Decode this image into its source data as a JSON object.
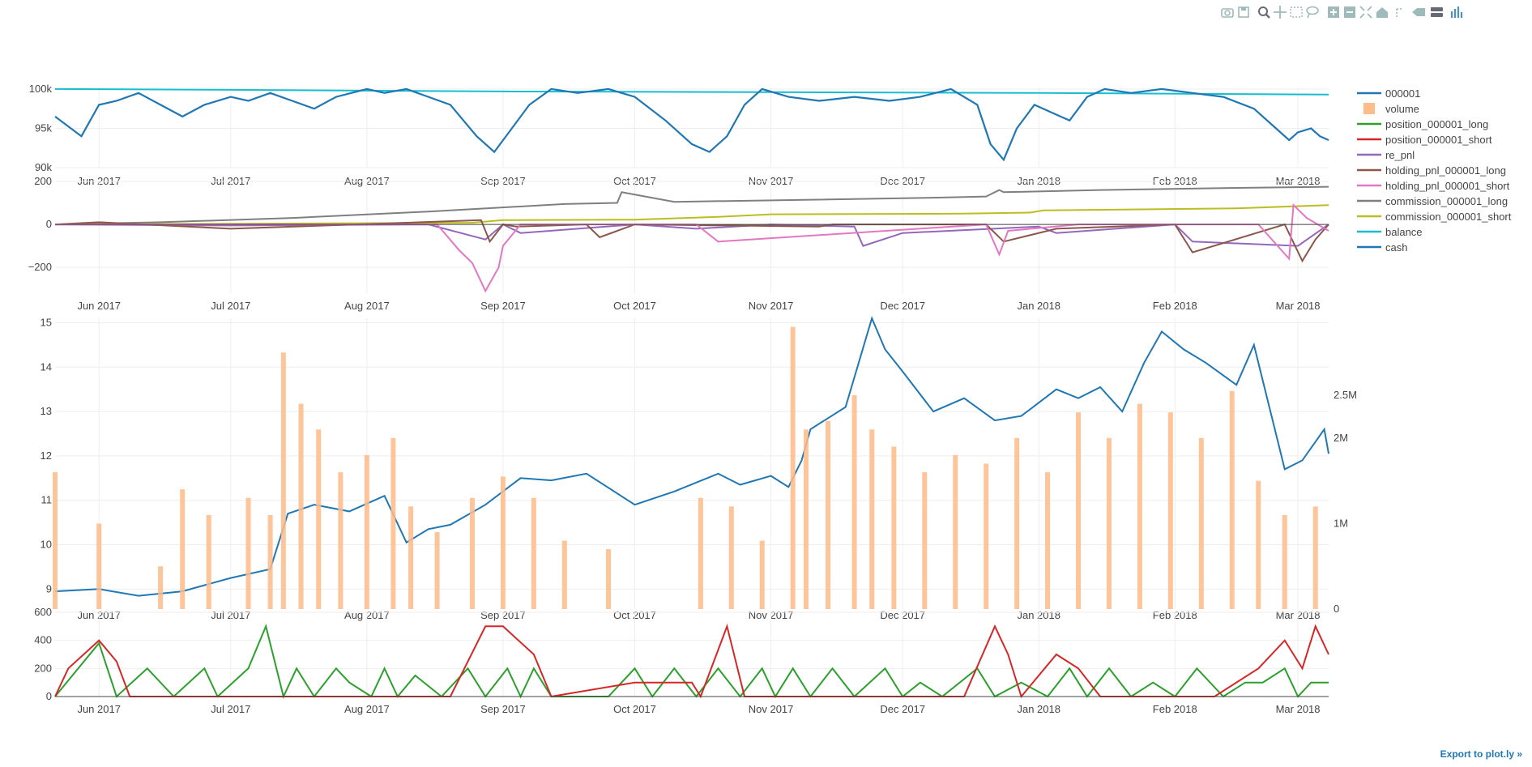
{
  "modebar": {
    "icons": [
      "camera-icon",
      "save-icon",
      "zoom-icon",
      "pan-icon",
      "box-select-icon",
      "lasso-icon",
      "zoom-in-icon",
      "zoom-out-icon",
      "autoscale-icon",
      "reset-axes-icon",
      "spike-lines-icon",
      "hover-closest-icon",
      "hover-compare-icon",
      "plotly-logo-icon"
    ]
  },
  "export": {
    "label": "Export to plot.ly »"
  },
  "colors": {
    "s000001": "#1f77b4",
    "volume": "#ffbb88",
    "pos_long": "#2ca02c",
    "pos_short": "#d62728",
    "re_pnl": "#9467bd",
    "hold_long": "#8c564b",
    "hold_short": "#e377c2",
    "comm_long": "#7f7f7f",
    "comm_short": "#bcbd22",
    "balance": "#17becf",
    "cash": "#1f77b4",
    "grid": "#eeeeee",
    "axis": "#444444"
  },
  "chart_data": [
    {
      "type": "line",
      "x_ticks": [
        "Jun 2017",
        "Jul 2017",
        "Aug 2017",
        "Sep 2017",
        "Oct 2017",
        "Nov 2017",
        "Dec 2017",
        "Jan 2018",
        "Feb 2018",
        "Mar 2018"
      ],
      "y_ticks": [
        "90k",
        "95k",
        "100k"
      ],
      "ylim": [
        90000,
        100200
      ],
      "series": [
        {
          "name": "balance",
          "x": [
            "2017-05-22",
            "2017-07-01",
            "2017-09-01",
            "2017-11-01",
            "2018-01-01",
            "2018-03-08"
          ],
          "values": [
            100000,
            99900,
            99700,
            99600,
            99500,
            99300
          ]
        },
        {
          "name": "cash",
          "x": [
            "2017-05-22",
            "2017-05-28",
            "2017-06-01",
            "2017-06-05",
            "2017-06-10",
            "2017-06-15",
            "2017-06-20",
            "2017-06-25",
            "2017-07-01",
            "2017-07-05",
            "2017-07-10",
            "2017-07-15",
            "2017-07-20",
            "2017-07-25",
            "2017-08-01",
            "2017-08-05",
            "2017-08-10",
            "2017-08-15",
            "2017-08-20",
            "2017-08-23",
            "2017-08-26",
            "2017-08-30",
            "2017-09-03",
            "2017-09-07",
            "2017-09-12",
            "2017-09-18",
            "2017-09-25",
            "2017-10-01",
            "2017-10-08",
            "2017-10-14",
            "2017-10-18",
            "2017-10-22",
            "2017-10-26",
            "2017-10-30",
            "2017-11-05",
            "2017-11-12",
            "2017-11-20",
            "2017-11-28",
            "2017-12-05",
            "2017-12-12",
            "2017-12-18",
            "2017-12-21",
            "2017-12-24",
            "2017-12-27",
            "2017-12-31",
            "2018-01-04",
            "2018-01-08",
            "2018-01-12",
            "2018-01-16",
            "2018-01-22",
            "2018-01-29",
            "2018-02-05",
            "2018-02-12",
            "2018-02-19",
            "2018-02-24",
            "2018-02-27",
            "2018-03-01",
            "2018-03-04",
            "2018-03-06",
            "2018-03-08"
          ],
          "values": [
            96500,
            94000,
            98000,
            98500,
            99500,
            98000,
            96500,
            98000,
            99000,
            98500,
            99500,
            98500,
            97500,
            99000,
            100000,
            99500,
            100000,
            99000,
            98000,
            96000,
            94000,
            92000,
            95000,
            98000,
            100000,
            99500,
            100000,
            99000,
            96000,
            93000,
            92000,
            94000,
            98000,
            100000,
            99000,
            98500,
            99000,
            98500,
            99000,
            100000,
            98000,
            93000,
            91000,
            95000,
            98000,
            97000,
            96000,
            99000,
            100000,
            99500,
            100000,
            99500,
            99000,
            97500,
            95000,
            93500,
            94500,
            95000,
            94000,
            93500
          ]
        }
      ]
    },
    {
      "type": "line",
      "x_ticks": [
        "Jun 2017",
        "Jul 2017",
        "Aug 2017",
        "Sep 2017",
        "Oct 2017",
        "Nov 2017",
        "Dec 2017",
        "Jan 2018",
        "Feb 2018",
        "Mar 2018"
      ],
      "y_ticks": [
        "−200",
        "0",
        "200"
      ],
      "ylim": [
        -320,
        200
      ],
      "series": [
        {
          "name": "commission_000001_long",
          "x": [
            "2017-05-22",
            "2017-06-15",
            "2017-07-15",
            "2017-08-15",
            "2017-09-15",
            "2017-09-27",
            "2017-09-28",
            "2017-10-10",
            "2017-11-10",
            "2017-12-10",
            "2017-12-20",
            "2017-12-23",
            "2017-12-24",
            "2018-01-15",
            "2018-02-15",
            "2018-03-08"
          ],
          "values": [
            0,
            10,
            30,
            60,
            95,
            100,
            150,
            105,
            115,
            125,
            130,
            160,
            150,
            160,
            170,
            175
          ]
        },
        {
          "name": "commission_000001_short",
          "x": [
            "2017-05-22",
            "2017-07-01",
            "2017-08-25",
            "2017-09-01",
            "2017-10-01",
            "2017-10-20",
            "2017-11-01",
            "2017-12-15",
            "2017-12-30",
            "2018-01-02",
            "2018-02-15",
            "2018-03-08"
          ],
          "values": [
            0,
            3,
            8,
            20,
            22,
            35,
            47,
            50,
            55,
            65,
            75,
            90
          ]
        },
        {
          "name": "re_pnl",
          "x": [
            "2017-05-22",
            "2017-07-01",
            "2017-08-15",
            "2017-08-28",
            "2017-09-01",
            "2017-09-05",
            "2017-10-01",
            "2017-10-15",
            "2017-11-01",
            "2017-11-20",
            "2017-11-22",
            "2017-12-01",
            "2018-01-01",
            "2018-01-05",
            "2018-02-01",
            "2018-02-05",
            "2018-03-01",
            "2018-03-08"
          ],
          "values": [
            0,
            -5,
            0,
            -70,
            0,
            -40,
            0,
            -20,
            0,
            -10,
            -100,
            -40,
            -10,
            -40,
            0,
            -80,
            -100,
            0
          ]
        },
        {
          "name": "holding_pnl_000001_long",
          "x": [
            "2017-05-22",
            "2017-06-01",
            "2017-07-01",
            "2017-08-27",
            "2017-08-29",
            "2017-09-01",
            "2017-09-04",
            "2017-09-20",
            "2017-09-23",
            "2017-10-01",
            "2017-11-12",
            "2017-11-15",
            "2017-12-20",
            "2017-12-24",
            "2018-01-05",
            "2018-02-01",
            "2018-02-05",
            "2018-02-26",
            "2018-03-02",
            "2018-03-05",
            "2018-03-08"
          ],
          "values": [
            0,
            10,
            -20,
            20,
            -80,
            0,
            -10,
            0,
            -60,
            0,
            -10,
            0,
            0,
            -80,
            -20,
            0,
            -130,
            0,
            -170,
            -70,
            0
          ]
        },
        {
          "name": "holding_pnl_000001_short",
          "x": [
            "2017-05-22",
            "2017-08-17",
            "2017-08-22",
            "2017-08-25",
            "2017-08-28",
            "2017-08-31",
            "2017-09-01",
            "2017-09-05",
            "2017-10-15",
            "2017-10-20",
            "2017-12-20",
            "2017-12-23",
            "2017-12-25",
            "2018-01-10",
            "2018-01-15",
            "2018-02-20",
            "2018-02-27",
            "2018-02-28",
            "2018-03-03",
            "2018-03-08"
          ],
          "values": [
            0,
            0,
            -120,
            -180,
            -310,
            -200,
            -100,
            0,
            0,
            -80,
            0,
            -140,
            -30,
            0,
            0,
            0,
            -160,
            90,
            30,
            -30
          ]
        }
      ]
    },
    {
      "type": "line",
      "x_ticks": [
        "Jun 2017",
        "Jul 2017",
        "Aug 2017",
        "Sep 2017",
        "Oct 2017",
        "Nov 2017",
        "Dec 2017",
        "Jan 2018",
        "Feb 2018",
        "Mar 2018"
      ],
      "y_ticks": [
        "9",
        "10",
        "11",
        "12",
        "13",
        "14",
        "15"
      ],
      "y2_ticks": [
        "0",
        "1M",
        "2M",
        "2.5M"
      ],
      "ylim": [
        8.55,
        15.1
      ],
      "series": [
        {
          "name": "000001",
          "x": [
            "2017-05-22",
            "2017-06-01",
            "2017-06-10",
            "2017-06-20",
            "2017-07-01",
            "2017-07-10",
            "2017-07-14",
            "2017-07-20",
            "2017-07-28",
            "2017-08-05",
            "2017-08-10",
            "2017-08-15",
            "2017-08-20",
            "2017-08-28",
            "2017-09-05",
            "2017-09-12",
            "2017-09-20",
            "2017-10-01",
            "2017-10-10",
            "2017-10-20",
            "2017-10-25",
            "2017-11-01",
            "2017-11-05",
            "2017-11-08",
            "2017-11-10",
            "2017-11-18",
            "2017-11-24",
            "2017-11-27",
            "2017-12-01",
            "2017-12-08",
            "2017-12-15",
            "2017-12-22",
            "2017-12-28",
            "2018-01-05",
            "2018-01-10",
            "2018-01-15",
            "2018-01-20",
            "2018-01-25",
            "2018-01-29",
            "2018-02-03",
            "2018-02-08",
            "2018-02-15",
            "2018-02-19",
            "2018-02-26",
            "2018-03-02",
            "2018-03-07",
            "2018-03-08"
          ],
          "values": [
            8.95,
            9.0,
            8.85,
            8.95,
            9.25,
            9.45,
            10.7,
            10.9,
            10.75,
            11.1,
            10.05,
            10.35,
            10.45,
            10.9,
            11.5,
            11.45,
            11.6,
            10.9,
            11.2,
            11.6,
            11.35,
            11.55,
            11.3,
            11.9,
            12.6,
            13.1,
            15.1,
            14.4,
            13.9,
            13.0,
            13.3,
            12.8,
            12.9,
            13.5,
            13.3,
            13.55,
            13.0,
            14.1,
            14.8,
            14.4,
            14.1,
            13.6,
            14.5,
            11.7,
            11.9,
            12.6,
            12.05
          ]
        },
        {
          "name": "volume",
          "axis": "y2",
          "ylim": [
            0,
            3400000
          ],
          "x": [
            "2017-05-22",
            "2017-06-01",
            "2017-06-15",
            "2017-06-20",
            "2017-06-26",
            "2017-07-05",
            "2017-07-10",
            "2017-07-13",
            "2017-07-17",
            "2017-07-21",
            "2017-07-26",
            "2017-08-01",
            "2017-08-07",
            "2017-08-11",
            "2017-08-17",
            "2017-08-25",
            "2017-09-01",
            "2017-09-08",
            "2017-09-15",
            "2017-09-25",
            "2017-10-16",
            "2017-10-23",
            "2017-10-30",
            "2017-11-06",
            "2017-11-09",
            "2017-11-14",
            "2017-11-20",
            "2017-11-24",
            "2017-11-29",
            "2017-12-06",
            "2017-12-13",
            "2017-12-20",
            "2017-12-27",
            "2018-01-03",
            "2018-01-10",
            "2018-01-17",
            "2018-01-24",
            "2018-01-31",
            "2018-02-07",
            "2018-02-14",
            "2018-02-20",
            "2018-02-26",
            "2018-03-05"
          ],
          "values": [
            1600000,
            1000000,
            500000,
            1400000,
            1100000,
            1300000,
            1100000,
            3000000,
            2400000,
            2100000,
            1600000,
            1800000,
            2000000,
            1200000,
            900000,
            1300000,
            1550000,
            1300000,
            800000,
            700000,
            1300000,
            1200000,
            800000,
            3300000,
            2100000,
            2200000,
            2500000,
            2100000,
            1900000,
            1600000,
            1800000,
            1700000,
            2000000,
            1600000,
            2300000,
            2000000,
            2400000,
            2300000,
            2000000,
            2550000,
            1500000,
            1100000,
            1200000
          ]
        }
      ]
    },
    {
      "type": "line",
      "x_ticks": [
        "Jun 2017",
        "Jul 2017",
        "Aug 2017",
        "Sep 2017",
        "Oct 2017",
        "Nov 2017",
        "Dec 2017",
        "Jan 2018",
        "Feb 2018",
        "Mar 2018"
      ],
      "y_ticks": [
        "0",
        "200",
        "400",
        "600"
      ],
      "ylim": [
        0,
        600
      ],
      "series": [
        {
          "name": "position_000001_long",
          "x": [
            "2017-05-22",
            "2017-06-01",
            "2017-06-05",
            "2017-06-12",
            "2017-06-18",
            "2017-06-25",
            "2017-06-28",
            "2017-07-05",
            "2017-07-09",
            "2017-07-13",
            "2017-07-16",
            "2017-07-20",
            "2017-07-25",
            "2017-07-28",
            "2017-08-02",
            "2017-08-05",
            "2017-08-08",
            "2017-08-12",
            "2017-08-18",
            "2017-08-24",
            "2017-08-28",
            "2017-09-02",
            "2017-09-05",
            "2017-09-08",
            "2017-09-12",
            "2017-09-25",
            "2017-10-01",
            "2017-10-05",
            "2017-10-10",
            "2017-10-15",
            "2017-10-20",
            "2017-10-25",
            "2017-10-30",
            "2017-11-02",
            "2017-11-06",
            "2017-11-10",
            "2017-11-15",
            "2017-11-20",
            "2017-11-27",
            "2017-12-01",
            "2017-12-05",
            "2017-12-10",
            "2017-12-18",
            "2017-12-22",
            "2017-12-28",
            "2018-01-03",
            "2018-01-08",
            "2018-01-12",
            "2018-01-17",
            "2018-01-22",
            "2018-01-27",
            "2018-02-01",
            "2018-02-06",
            "2018-02-12",
            "2018-02-17",
            "2018-02-21",
            "2018-02-26",
            "2018-03-01",
            "2018-03-04",
            "2018-03-08"
          ],
          "values": [
            0,
            380,
            0,
            200,
            0,
            200,
            0,
            200,
            500,
            0,
            200,
            0,
            200,
            100,
            0,
            200,
            0,
            150,
            0,
            200,
            0,
            200,
            0,
            200,
            0,
            0,
            200,
            0,
            200,
            0,
            200,
            0,
            200,
            0,
            200,
            0,
            200,
            0,
            200,
            0,
            100,
            0,
            200,
            0,
            100,
            0,
            200,
            0,
            200,
            0,
            100,
            0,
            200,
            0,
            100,
            100,
            200,
            0,
            100,
            100
          ]
        },
        {
          "name": "position_000001_short",
          "x": [
            "2017-05-22",
            "2017-05-25",
            "2017-06-01",
            "2017-06-05",
            "2017-06-08",
            "2017-08-20",
            "2017-08-28",
            "2017-09-01",
            "2017-09-08",
            "2017-09-12",
            "2017-10-01",
            "2017-10-14",
            "2017-10-16",
            "2017-10-22",
            "2017-10-26",
            "2017-11-01",
            "2017-11-18",
            "2017-12-15",
            "2017-12-22",
            "2017-12-25",
            "2017-12-28",
            "2018-01-05",
            "2018-01-10",
            "2018-01-15",
            "2018-01-20",
            "2018-02-10",
            "2018-02-20",
            "2018-02-26",
            "2018-03-02",
            "2018-03-05",
            "2018-03-08"
          ],
          "values": [
            0,
            200,
            400,
            250,
            0,
            0,
            500,
            500,
            300,
            0,
            100,
            100,
            0,
            500,
            0,
            0,
            0,
            0,
            500,
            300,
            0,
            300,
            200,
            0,
            0,
            0,
            200,
            400,
            200,
            500,
            300
          ]
        }
      ]
    }
  ],
  "legend": [
    {
      "label": "000001",
      "kind": "line",
      "color": "#1f77b4"
    },
    {
      "label": "volume",
      "kind": "box",
      "color": "#ffbb88"
    },
    {
      "label": "position_000001_long",
      "kind": "line",
      "color": "#2ca02c"
    },
    {
      "label": "position_000001_short",
      "kind": "line",
      "color": "#d62728"
    },
    {
      "label": "re_pnl",
      "kind": "line",
      "color": "#9467bd"
    },
    {
      "label": "holding_pnl_000001_long",
      "kind": "line",
      "color": "#8c564b"
    },
    {
      "label": "holding_pnl_000001_short",
      "kind": "line",
      "color": "#e377c2"
    },
    {
      "label": "commission_000001_long",
      "kind": "line",
      "color": "#7f7f7f"
    },
    {
      "label": "commission_000001_short",
      "kind": "line",
      "color": "#bcbd22"
    },
    {
      "label": "balance",
      "kind": "line",
      "color": "#17becf"
    },
    {
      "label": "cash",
      "kind": "line",
      "color": "#1f77b4"
    }
  ]
}
